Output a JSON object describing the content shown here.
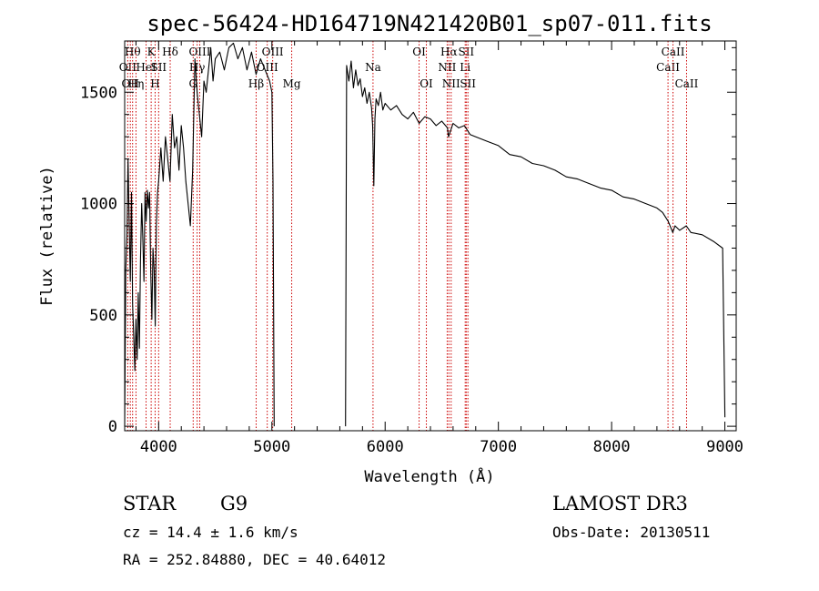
{
  "chart_data": {
    "type": "line",
    "title": "spec-56424-HD164719N421420B01_sp07-011.fits",
    "xlabel": "Wavelength (Å)",
    "ylabel": "Flux (relative)",
    "xlim": [
      3700,
      9100
    ],
    "ylim": [
      -20,
      1730
    ],
    "x_ticks": [
      4000,
      5000,
      6000,
      7000,
      8000,
      9000
    ],
    "y_ticks": [
      0,
      500,
      1000,
      1500
    ],
    "grid": false,
    "line_color": "#000000",
    "marker_color": "#cc0000",
    "segments": [
      {
        "x": [
          3700,
          3710,
          3720,
          3730,
          3740,
          3750,
          3760,
          3770,
          3780,
          3790,
          3800,
          3810,
          3820,
          3830,
          3840,
          3850,
          3860,
          3870,
          3880,
          3890,
          3900,
          3910,
          3920,
          3930,
          3940,
          3950,
          3960,
          3970,
          3980,
          3990,
          4000,
          4020,
          4040,
          4060,
          4080,
          4100,
          4120,
          4140,
          4160,
          4180,
          4200,
          4220,
          4240,
          4260,
          4280,
          4300,
          4320,
          4340,
          4360,
          4380,
          4400,
          4420,
          4440,
          4460,
          4480,
          4500,
          4540,
          4580,
          4620,
          4660,
          4700,
          4740,
          4780,
          4820,
          4860,
          4900,
          4940,
          4980,
          5000,
          5010,
          5020
        ],
        "y": [
          0,
          700,
          850,
          1200,
          900,
          650,
          1050,
          550,
          400,
          250,
          480,
          300,
          600,
          350,
          750,
          1000,
          850,
          650,
          1050,
          920,
          1060,
          980,
          1050,
          700,
          480,
          800,
          700,
          450,
          900,
          1050,
          1100,
          1250,
          1100,
          1300,
          1200,
          1100,
          1400,
          1250,
          1300,
          1150,
          1350,
          1250,
          1100,
          1000,
          900,
          1150,
          1650,
          1500,
          1400,
          1300,
          1550,
          1500,
          1600,
          1700,
          1550,
          1650,
          1680,
          1600,
          1700,
          1720,
          1650,
          1700,
          1600,
          1680,
          1580,
          1650,
          1600,
          1550,
          1500,
          1100,
          0
        ]
      },
      {
        "x": [
          5650,
          5660,
          5680,
          5700,
          5720,
          5740,
          5760,
          5780,
          5800,
          5820,
          5840,
          5860,
          5880,
          5890,
          5900,
          5910,
          5920,
          5940,
          5960,
          5980,
          6000,
          6050,
          6100,
          6150,
          6200,
          6250,
          6300,
          6350,
          6400,
          6450,
          6500,
          6550,
          6560,
          6600,
          6650,
          6700,
          6750,
          6800,
          6900,
          7000,
          7100,
          7200,
          7300,
          7400,
          7500,
          7600,
          7700,
          7800,
          7900,
          8000,
          8100,
          8200,
          8300,
          8400,
          8450,
          8500,
          8540,
          8560,
          8600,
          8660,
          8700,
          8800,
          8900,
          8980,
          9000
        ],
        "y": [
          0,
          1620,
          1550,
          1640,
          1520,
          1600,
          1530,
          1560,
          1480,
          1520,
          1450,
          1500,
          1430,
          1350,
          1080,
          1380,
          1470,
          1440,
          1500,
          1420,
          1450,
          1420,
          1440,
          1400,
          1380,
          1410,
          1360,
          1390,
          1380,
          1350,
          1370,
          1340,
          1300,
          1360,
          1340,
          1350,
          1310,
          1300,
          1280,
          1260,
          1220,
          1210,
          1180,
          1170,
          1150,
          1120,
          1110,
          1090,
          1070,
          1060,
          1030,
          1020,
          1000,
          980,
          960,
          920,
          870,
          900,
          880,
          900,
          870,
          860,
          830,
          800,
          40
        ]
      }
    ],
    "markers": [
      {
        "x": 3727,
        "label": "OII",
        "row": 2
      },
      {
        "x": 3750,
        "label": "OII",
        "row": 3
      },
      {
        "x": 3770,
        "label": "Hθ",
        "row": 1
      },
      {
        "x": 3800,
        "label": "Hη",
        "row": 3
      },
      {
        "x": 3889,
        "label": "HeI",
        "row": 2
      },
      {
        "x": 3934,
        "label": "K",
        "row": 1
      },
      {
        "x": 3969,
        "label": "H",
        "row": 3
      },
      {
        "x": 4000,
        "label": "SII",
        "row": 2
      },
      {
        "x": 4102,
        "label": "Hδ",
        "row": 1
      },
      {
        "x": 4340,
        "label": "Hγ",
        "row": 2
      },
      {
        "x": 4305,
        "label": "G",
        "row": 3
      },
      {
        "x": 4363,
        "label": "OIII",
        "row": 1
      },
      {
        "x": 4861,
        "label": "Hβ",
        "row": 3
      },
      {
        "x": 4959,
        "label": "OIII",
        "row": 2
      },
      {
        "x": 5007,
        "label": "OIII",
        "row": 1
      },
      {
        "x": 5175,
        "label": "Mg",
        "row": 3
      },
      {
        "x": 5893,
        "label": "Na",
        "row": 2
      },
      {
        "x": 6300,
        "label": "OI",
        "row": 1
      },
      {
        "x": 6364,
        "label": "OI",
        "row": 3
      },
      {
        "x": 6548,
        "label": "NII",
        "row": 2
      },
      {
        "x": 6563,
        "label": "Hα",
        "row": 1
      },
      {
        "x": 6583,
        "label": "NII",
        "row": 3
      },
      {
        "x": 6707,
        "label": "Li",
        "row": 2
      },
      {
        "x": 6716,
        "label": "SII",
        "row": 1
      },
      {
        "x": 6731,
        "label": "SII",
        "row": 3
      },
      {
        "x": 8498,
        "label": "CaII",
        "row": 2
      },
      {
        "x": 8542,
        "label": "CaII",
        "row": 1
      },
      {
        "x": 8662,
        "label": "CaII",
        "row": 3
      }
    ]
  },
  "info": {
    "class_label": "STAR",
    "subclass": "G9",
    "survey": "LAMOST DR3",
    "redshift": "cz = 14.4 ± 1.6 km/s",
    "obs_date": "Obs-Date: 20130511",
    "coords": "RA = 252.84880, DEC =  40.64012"
  }
}
